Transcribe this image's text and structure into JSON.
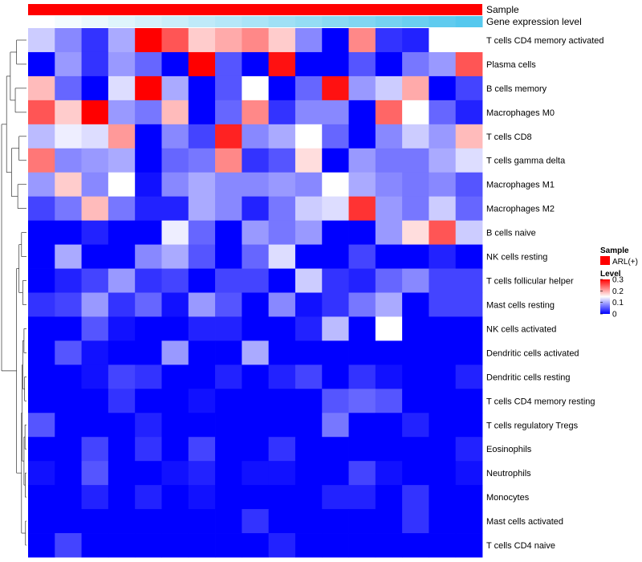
{
  "chart_data": {
    "type": "heatmap",
    "title": "",
    "annotation_tracks": [
      {
        "label": "Sample",
        "color": "#ff0000"
      },
      {
        "label": "Gene expression level",
        "color_low": "#ffffff",
        "color_high": "#55c8ee"
      }
    ],
    "rows": [
      "T cells CD4 memory activated",
      "Plasma cells",
      "B cells memory",
      "Macrophages M0",
      "T cells CD8",
      "T cells gamma delta",
      "Macrophages M1",
      "Macrophages M2",
      "B cells naive",
      "NK cells resting",
      "T cells follicular helper",
      "Mast cells resting",
      "NK cells activated",
      "Dendritic cells activated",
      "Dendritic cells resting",
      "T cells CD4 memory resting",
      "T cells regulatory  Tregs",
      "Eosinophils",
      "Neutrophils",
      "Monocytes",
      "Mast cells activated",
      "T cells CD4 naive"
    ],
    "n_columns": 17,
    "values": [
      [
        0.12,
        0.08,
        0.03,
        0.1,
        0.3,
        0.25,
        0.18,
        0.2,
        0.22,
        0.18,
        0.08,
        0.0,
        0.22,
        0.03,
        0.02,
        0.15,
        0.15
      ],
      [
        0.0,
        0.09,
        0.03,
        0.09,
        0.06,
        0.0,
        0.3,
        0.05,
        0.0,
        0.29,
        0.0,
        0.0,
        0.05,
        0.0,
        0.07,
        0.09,
        0.25
      ],
      [
        0.19,
        0.06,
        0.0,
        0.13,
        0.3,
        0.1,
        0.0,
        0.05,
        0.15,
        0.0,
        0.06,
        0.29,
        0.09,
        0.12,
        0.2,
        0.0,
        0.04
      ],
      [
        0.25,
        0.18,
        0.3,
        0.09,
        0.07,
        0.19,
        0.0,
        0.06,
        0.22,
        0.03,
        0.08,
        0.08,
        0.0,
        0.24,
        0.15,
        0.06,
        0.02
      ],
      [
        0.11,
        0.14,
        0.13,
        0.21,
        0.0,
        0.08,
        0.04,
        0.28,
        0.08,
        0.1,
        0.15,
        0.06,
        0.0,
        0.08,
        0.12,
        0.09,
        0.19
      ],
      [
        0.23,
        0.08,
        0.09,
        0.1,
        0.0,
        0.06,
        0.07,
        0.22,
        0.03,
        0.05,
        0.17,
        0.0,
        0.09,
        0.07,
        0.07,
        0.1,
        0.13
      ],
      [
        0.09,
        0.18,
        0.08,
        0.15,
        0.01,
        0.08,
        0.1,
        0.08,
        0.08,
        0.09,
        0.08,
        0.15,
        0.1,
        0.08,
        0.07,
        0.08,
        0.05
      ],
      [
        0.04,
        0.07,
        0.19,
        0.07,
        0.02,
        0.02,
        0.1,
        0.08,
        0.02,
        0.07,
        0.12,
        0.13,
        0.27,
        0.09,
        0.07,
        0.12,
        0.06
      ],
      [
        0.0,
        0.0,
        0.02,
        0.0,
        0.0,
        0.14,
        0.06,
        0.0,
        0.09,
        0.07,
        0.09,
        0.0,
        0.0,
        0.09,
        0.17,
        0.25,
        0.12
      ],
      [
        0.0,
        0.1,
        0.0,
        0.0,
        0.08,
        0.1,
        0.05,
        0.0,
        0.06,
        0.13,
        0.0,
        0.0,
        0.04,
        0.0,
        0.0,
        0.02,
        0.0
      ],
      [
        0.0,
        0.02,
        0.04,
        0.09,
        0.03,
        0.04,
        0.0,
        0.04,
        0.04,
        0.0,
        0.12,
        0.03,
        0.02,
        0.06,
        0.08,
        0.04,
        0.04
      ],
      [
        0.03,
        0.04,
        0.09,
        0.03,
        0.06,
        0.01,
        0.09,
        0.05,
        0.0,
        0.08,
        0.01,
        0.03,
        0.07,
        0.1,
        0.0,
        0.04,
        0.04
      ],
      [
        0.0,
        0.0,
        0.05,
        0.01,
        0.0,
        0.0,
        0.02,
        0.02,
        0.0,
        0.0,
        0.02,
        0.11,
        0.0,
        0.15,
        0.0,
        0.0,
        0.0
      ],
      [
        0.0,
        0.05,
        0.01,
        0.0,
        0.0,
        0.09,
        0.0,
        0.0,
        0.1,
        0.0,
        0.0,
        0.0,
        0.0,
        0.0,
        0.0,
        0.0,
        0.0
      ],
      [
        0.0,
        0.0,
        0.01,
        0.04,
        0.03,
        0.0,
        0.0,
        0.02,
        0.0,
        0.02,
        0.04,
        0.0,
        0.03,
        0.01,
        0.0,
        0.0,
        0.02
      ],
      [
        0.0,
        0.0,
        0.0,
        0.03,
        0.0,
        0.0,
        0.01,
        0.0,
        0.0,
        0.0,
        0.0,
        0.05,
        0.06,
        0.05,
        0.0,
        0.0,
        0.0
      ],
      [
        0.05,
        0.0,
        0.0,
        0.0,
        0.02,
        0.0,
        0.0,
        0.0,
        0.0,
        0.0,
        0.0,
        0.07,
        0.0,
        0.0,
        0.02,
        0.0,
        0.0
      ],
      [
        0.0,
        0.0,
        0.04,
        0.0,
        0.03,
        0.0,
        0.04,
        0.0,
        0.0,
        0.03,
        0.0,
        0.0,
        0.0,
        0.0,
        0.0,
        0.0,
        0.02
      ],
      [
        0.01,
        0.0,
        0.05,
        0.0,
        0.0,
        0.01,
        0.02,
        0.0,
        0.01,
        0.01,
        0.0,
        0.0,
        0.04,
        0.01,
        0.0,
        0.0,
        0.01
      ],
      [
        0.0,
        0.0,
        0.02,
        0.0,
        0.02,
        0.0,
        0.01,
        0.0,
        0.0,
        0.0,
        0.0,
        0.02,
        0.02,
        0.0,
        0.03,
        0.0,
        0.0
      ],
      [
        0.0,
        0.0,
        0.0,
        0.0,
        0.0,
        0.0,
        0.0,
        0.0,
        0.03,
        0.0,
        0.0,
        0.0,
        0.0,
        0.0,
        0.03,
        0.0,
        0.0
      ],
      [
        0.0,
        0.04,
        0.0,
        0.0,
        0.0,
        0.0,
        0.0,
        0.0,
        0.0,
        0.02,
        0.0,
        0.0,
        0.0,
        0.0,
        0.0,
        0.0,
        0.0
      ]
    ],
    "color_scale": {
      "min": 0,
      "mid": 0.15,
      "max": 0.3,
      "low": "#0000ff",
      "mid_color": "#ffffff",
      "high": "#ff0000"
    },
    "legend": {
      "sample_title": "Sample",
      "sample_item": "ARL(+)",
      "sample_color": "#ff0000",
      "level_title": "Level",
      "level_ticks": [
        "0.3",
        "0.2",
        "0.1",
        "0"
      ],
      "level_tick_values": [
        0.3,
        0.2,
        0.1,
        0
      ]
    }
  }
}
